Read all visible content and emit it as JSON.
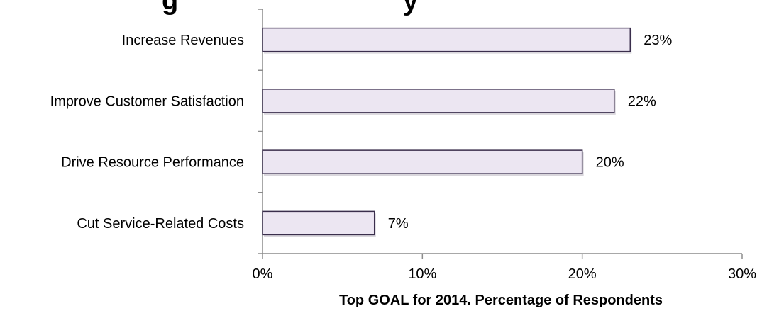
{
  "chart_data": {
    "type": "bar",
    "orientation": "horizontal",
    "title": "",
    "categories": [
      "Increase Revenues",
      "Improve Customer Satisfaction",
      "Drive Resource Performance",
      "Cut Service-Related Costs"
    ],
    "values": [
      23,
      22,
      20,
      7
    ],
    "value_labels": [
      "23%",
      "22%",
      "20%",
      "7%"
    ],
    "xlabel": "Top GOAL for 2014. Percentage of Respondents",
    "ylabel": "",
    "xlim": [
      0,
      30
    ],
    "ticks": [
      0,
      10,
      20,
      30
    ],
    "tick_labels": [
      "0%",
      "10%",
      "20%",
      "30%"
    ],
    "grid": false,
    "legend": "none",
    "colors": {
      "bar_fill": "#ECE6F2",
      "bar_stroke": "#3A2E4C",
      "axis": "#8C8C8C"
    }
  }
}
